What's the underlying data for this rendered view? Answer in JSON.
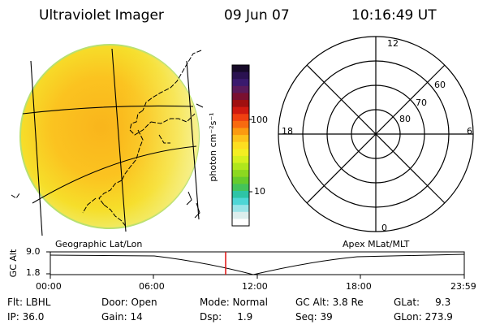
{
  "header": {
    "instrument": "Ultraviolet Imager",
    "date": "09 Jun 07",
    "time": "10:16:49 UT"
  },
  "colorbar": {
    "unit_label": "photon cm⁻²s⁻¹",
    "ticks": [
      "100",
      "10"
    ],
    "colors": [
      "#160a28",
      "#2a1250",
      "#3a1a6e",
      "#5a1a5a",
      "#7a1030",
      "#a01010",
      "#d01a10",
      "#f04010",
      "#f86a10",
      "#fb9a10",
      "#fdc21a",
      "#fdde20",
      "#f4ee22",
      "#d6f01e",
      "#b0e61c",
      "#8cd820",
      "#66cc2c",
      "#44c45a",
      "#2ec4a6",
      "#4ed6d6",
      "#9ae4e8",
      "#dceeed",
      "#ffffff"
    ]
  },
  "polar": {
    "top_label": "12",
    "bottom_label": "0",
    "left_label": "18",
    "right_label": "6",
    "lat_labels": [
      "60",
      "70",
      "80"
    ]
  },
  "timeline": {
    "left_title": "Geographic Lat/Lon",
    "right_title": "Apex MLat/MLT",
    "y_axis_label": "GC Alt",
    "y_ticks": [
      "9.0",
      "1.8"
    ],
    "x_ticks": [
      "00:00",
      "06:00",
      "12:00",
      "18:00",
      "23:59"
    ],
    "marker_color": "#e01010"
  },
  "status": {
    "flt": "Flt: LBHL",
    "ip": "IP: 36.0",
    "door": "Door: Open",
    "gain": "Gain: 14",
    "mode": "Mode: Normal",
    "dsp": "Dsp:     1.9",
    "gc_alt": "GC Alt: 3.8 Re",
    "seq": "Seq: 39",
    "glat": "GLat:     9.3",
    "glon": "GLon: 273.9"
  }
}
